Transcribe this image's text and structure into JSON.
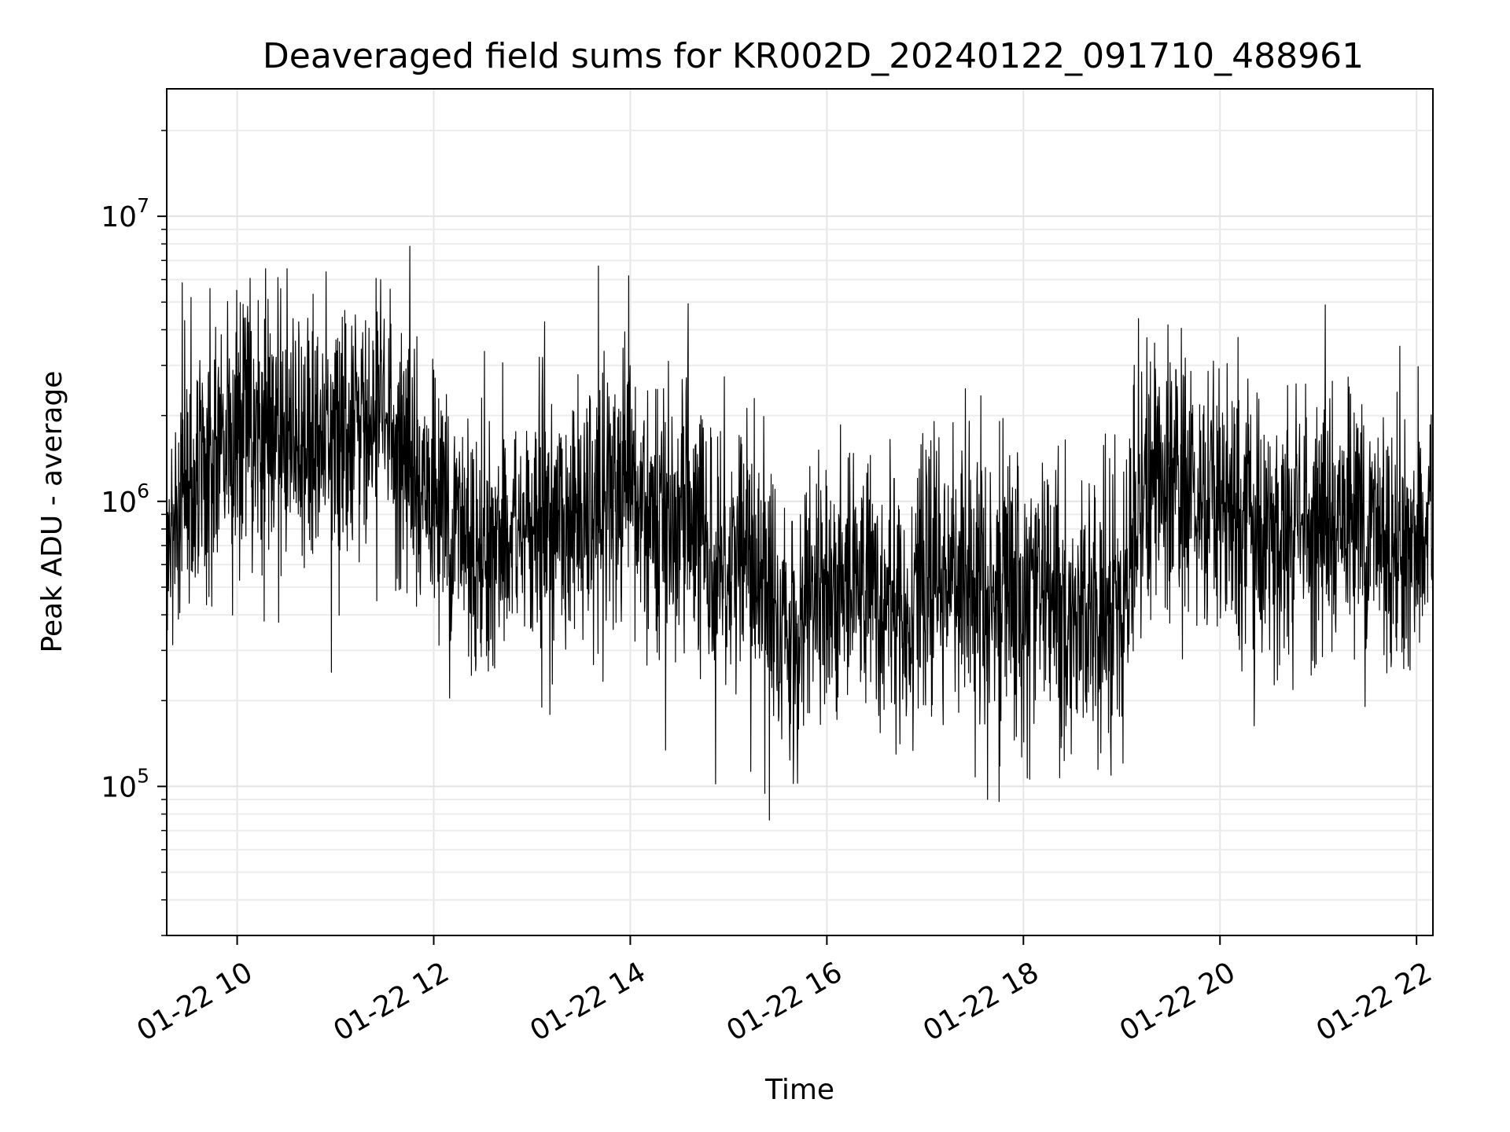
{
  "chart_data": {
    "type": "line",
    "title": "Deaveraged field sums for KR002D_20240122_091710_488961",
    "xlabel": "Time",
    "ylabel": "Peak ADU - average",
    "x_ticks": [
      "01-22 10",
      "01-22 12",
      "01-22 14",
      "01-22 16",
      "01-22 18",
      "01-22 20",
      "01-22 22"
    ],
    "y_ticks": [
      {
        "base": "10",
        "exp": "5",
        "value": 100000
      },
      {
        "base": "10",
        "exp": "6",
        "value": 1000000
      },
      {
        "base": "10",
        "exp": "7",
        "value": 10000000
      }
    ],
    "xlim": [
      "2024-01-22 09:17",
      "2024-01-22 22:10"
    ],
    "ylim": [
      30000,
      28000000
    ],
    "y_scale": "log",
    "grid": true,
    "line_color": "#000000",
    "series": [
      {
        "x": [
          "2024-01-22 09:17",
          "2024-01-22 09:30",
          "2024-01-22 09:45",
          "2024-01-22 10:00",
          "2024-01-22 10:15",
          "2024-01-22 10:30",
          "2024-01-22 10:45",
          "2024-01-22 11:00",
          "2024-01-22 11:15",
          "2024-01-22 11:30",
          "2024-01-22 11:45",
          "2024-01-22 12:00",
          "2024-01-22 12:15",
          "2024-01-22 12:30",
          "2024-01-22 12:45",
          "2024-01-22 13:00",
          "2024-01-22 13:15",
          "2024-01-22 13:30",
          "2024-01-22 13:45",
          "2024-01-22 14:00",
          "2024-01-22 14:15",
          "2024-01-22 14:30",
          "2024-01-22 14:45",
          "2024-01-22 15:00",
          "2024-01-22 15:15",
          "2024-01-22 15:30",
          "2024-01-22 15:45",
          "2024-01-22 16:00",
          "2024-01-22 16:15",
          "2024-01-22 16:30",
          "2024-01-22 16:45",
          "2024-01-22 17:00",
          "2024-01-22 17:15",
          "2024-01-22 17:30",
          "2024-01-22 17:45",
          "2024-01-22 18:00",
          "2024-01-22 18:15",
          "2024-01-22 18:30",
          "2024-01-22 18:45",
          "2024-01-22 19:00",
          "2024-01-22 19:15",
          "2024-01-22 19:30",
          "2024-01-22 19:45",
          "2024-01-22 20:00",
          "2024-01-22 20:15",
          "2024-01-22 20:30",
          "2024-01-22 20:45",
          "2024-01-22 21:00",
          "2024-01-22 21:15",
          "2024-01-22 21:30",
          "2024-01-22 21:45",
          "2024-01-22 22:00",
          "2024-01-22 22:10"
        ],
        "y": [
          700000,
          1200000,
          1500000,
          1600000,
          1700000,
          1800000,
          1600000,
          1500000,
          1700000,
          1900000,
          1400000,
          1000000,
          800000,
          700000,
          750000,
          800000,
          850000,
          900000,
          950000,
          1000000,
          900000,
          850000,
          700000,
          650000,
          600000,
          400000,
          350000,
          500000,
          550000,
          500000,
          450000,
          500000,
          550000,
          520000,
          480000,
          500000,
          450000,
          420000,
          400000,
          450000,
          1300000,
          1200000,
          1100000,
          1000000,
          900000,
          700000,
          800000,
          850000,
          900000,
          800000,
          750000,
          700000,
          900000
        ]
      }
    ]
  }
}
